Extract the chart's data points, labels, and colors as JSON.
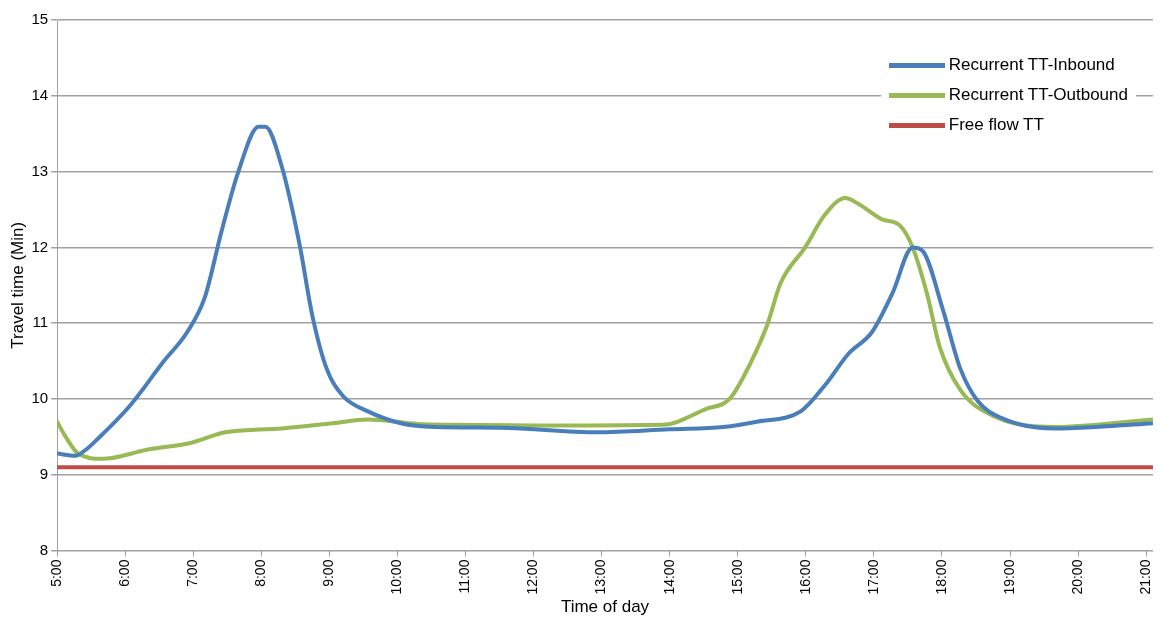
{
  "chart_data": {
    "type": "line",
    "xlabel": "Time of day",
    "ylabel": "Travel time (Min)",
    "xlim": [
      5,
      21.1
    ],
    "ylim": [
      8,
      15
    ],
    "xticks": [
      {
        "value": 5,
        "label": "5:00"
      },
      {
        "value": 6,
        "label": "6:00"
      },
      {
        "value": 7,
        "label": "7:00"
      },
      {
        "value": 8,
        "label": "8:00"
      },
      {
        "value": 9,
        "label": "9:00"
      },
      {
        "value": 10,
        "label": "10:00"
      },
      {
        "value": 11,
        "label": "11:00"
      },
      {
        "value": 12,
        "label": "12:00"
      },
      {
        "value": 13,
        "label": "13:00"
      },
      {
        "value": 14,
        "label": "14:00"
      },
      {
        "value": 15,
        "label": "15:00"
      },
      {
        "value": 16,
        "label": "16:00"
      },
      {
        "value": 17,
        "label": "17:00"
      },
      {
        "value": 18,
        "label": "18:00"
      },
      {
        "value": 19,
        "label": "19:00"
      },
      {
        "value": 20,
        "label": "20:00"
      },
      {
        "value": 21,
        "label": "21:00"
      }
    ],
    "yticks": [
      8,
      9,
      10,
      11,
      12,
      13,
      14,
      15
    ],
    "grid": "y",
    "legend": "top right",
    "marker": "none",
    "line_style": "solid",
    "series": [
      {
        "name": "Recurrent TT-Inbound",
        "color": "#4a7ebb",
        "x": [
          5,
          5.27,
          5.42,
          5.57,
          6.06,
          6.57,
          6.91,
          7.17,
          7.41,
          7.66,
          7.96,
          8.06,
          8.3,
          8.56,
          8.75,
          8.96,
          9.2,
          9.56,
          10.05,
          10.55,
          11.5,
          12.94,
          14,
          14.79,
          15.28,
          15.93,
          16.28,
          16.63,
          16.97,
          17.27,
          17.57,
          17.72,
          18.02,
          18.27,
          18.52,
          18.87,
          19.66,
          20.26,
          21.1
        ],
        "values": [
          9.28,
          9.25,
          9.33,
          9.45,
          9.9,
          10.5,
          10.88,
          11.34,
          12.19,
          12.99,
          13.59,
          13.59,
          13.07,
          12.05,
          11.1,
          10.4,
          10.04,
          9.84,
          9.68,
          9.63,
          9.62,
          9.56,
          9.6,
          9.63,
          9.7,
          9.84,
          10.18,
          10.6,
          10.88,
          11.39,
          12,
          11.95,
          11.16,
          10.4,
          9.98,
          9.75,
          9.61,
          9.63,
          9.68
        ]
      },
      {
        "name": "Recurrent TT-Outbound",
        "color": "#98b954",
        "x": [
          5,
          5.12,
          5.31,
          5.67,
          6.32,
          6.96,
          7.47,
          8.3,
          9.05,
          9.56,
          10.3,
          10.8,
          12,
          13.9,
          14.54,
          14.88,
          15.18,
          15.43,
          15.63,
          15.99,
          16.28,
          16.58,
          16.78,
          17.12,
          17.38,
          17.57,
          17.78,
          17.97,
          18.27,
          18.77,
          19.66,
          21.1
        ],
        "values": [
          9.7,
          9.51,
          9.28,
          9.21,
          9.33,
          9.42,
          9.56,
          9.61,
          9.68,
          9.73,
          9.67,
          9.66,
          9.65,
          9.66,
          9.87,
          10,
          10.46,
          10.97,
          11.53,
          12,
          12.43,
          12.65,
          12.57,
          12.37,
          12.29,
          12,
          11.39,
          10.68,
          10.12,
          9.77,
          9.63,
          9.73
        ]
      },
      {
        "name": "Free flow TT",
        "color": "#be4b48",
        "x": [
          5,
          21.1
        ],
        "values": [
          9.1,
          9.1
        ]
      }
    ]
  }
}
